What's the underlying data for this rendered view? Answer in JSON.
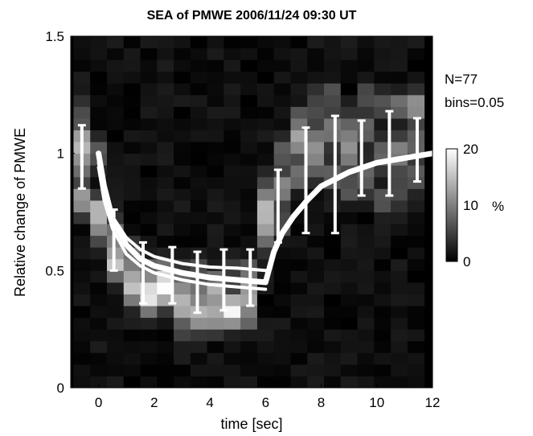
{
  "chart_data": {
    "type": "heatmap",
    "title": "SEA of PMWE 2006/11/24 09:30 UT",
    "xlabel": "time [sec]",
    "ylabel": "Relative change of PMWE",
    "xlim": [
      -1,
      12
    ],
    "ylim": [
      0,
      1.5
    ],
    "x_ticks": [
      "0",
      "2",
      "4",
      "6",
      "8",
      "10",
      "12"
    ],
    "y_ticks": [
      "0",
      "0.5",
      "1",
      "1.5"
    ],
    "annotations": [
      "N=77",
      "bins=0.05"
    ],
    "colorbar": {
      "min": 0,
      "max": 20,
      "ticks": [
        "0",
        "10",
        "20"
      ],
      "unit": "%",
      "colormap": "gray"
    },
    "bins": {
      "time_step": 0.6,
      "time_start": -0.9,
      "value_step": 0.05
    },
    "heatmap_columns": [
      {
        "t": -0.6,
        "peaks": [
          [
            1.05,
            14
          ],
          [
            0.8,
            12
          ],
          [
            0.95,
            8
          ],
          [
            1.2,
            4
          ]
        ]
      },
      {
        "t": 0.0,
        "peaks": [
          [
            0.75,
            14
          ],
          [
            0.65,
            6
          ],
          [
            1.0,
            6
          ]
        ]
      },
      {
        "t": 0.6,
        "peaks": [
          [
            0.55,
            10
          ],
          [
            0.65,
            8
          ],
          [
            0.5,
            6
          ]
        ]
      },
      {
        "t": 1.2,
        "peaks": [
          [
            0.45,
            10
          ],
          [
            0.55,
            8
          ],
          [
            0.4,
            6
          ]
        ]
      },
      {
        "t": 1.8,
        "peaks": [
          [
            0.4,
            14
          ],
          [
            0.5,
            8
          ],
          [
            0.35,
            6
          ]
        ]
      },
      {
        "t": 2.4,
        "peaks": [
          [
            0.4,
            12
          ],
          [
            0.45,
            8
          ],
          [
            0.5,
            6
          ]
        ]
      },
      {
        "t": 3.0,
        "peaks": [
          [
            0.35,
            12
          ],
          [
            0.45,
            8
          ],
          [
            0.25,
            4
          ]
        ]
      },
      {
        "t": 3.6,
        "peaks": [
          [
            0.3,
            12
          ],
          [
            0.4,
            8
          ],
          [
            0.5,
            4
          ]
        ]
      },
      {
        "t": 4.2,
        "peaks": [
          [
            0.3,
            12
          ],
          [
            0.4,
            8
          ],
          [
            0.45,
            6
          ]
        ]
      },
      {
        "t": 4.8,
        "peaks": [
          [
            0.35,
            12
          ],
          [
            0.3,
            8
          ],
          [
            0.5,
            4
          ]
        ]
      },
      {
        "t": 5.4,
        "peaks": [
          [
            0.4,
            10
          ],
          [
            0.3,
            8
          ],
          [
            0.5,
            6
          ]
        ]
      },
      {
        "t": 6.0,
        "peaks": [
          [
            0.75,
            14
          ],
          [
            0.65,
            8
          ],
          [
            0.85,
            6
          ]
        ]
      },
      {
        "t": 6.6,
        "peaks": [
          [
            0.85,
            10
          ],
          [
            1.0,
            6
          ],
          [
            0.7,
            6
          ]
        ]
      },
      {
        "t": 7.2,
        "peaks": [
          [
            1.05,
            12
          ],
          [
            0.9,
            8
          ],
          [
            1.15,
            6
          ]
        ]
      },
      {
        "t": 7.8,
        "peaks": [
          [
            1.05,
            10
          ],
          [
            0.95,
            8
          ],
          [
            1.2,
            6
          ]
        ]
      },
      {
        "t": 8.4,
        "peaks": [
          [
            1.1,
            10
          ],
          [
            0.9,
            8
          ],
          [
            1.25,
            6
          ]
        ]
      },
      {
        "t": 9.0,
        "peaks": [
          [
            1.0,
            10
          ],
          [
            1.1,
            8
          ],
          [
            0.85,
            6
          ]
        ]
      },
      {
        "t": 9.6,
        "peaks": [
          [
            1.1,
            8
          ],
          [
            0.9,
            8
          ],
          [
            1.25,
            6
          ]
        ]
      },
      {
        "t": 10.2,
        "peaks": [
          [
            1.0,
            8
          ],
          [
            1.2,
            6
          ],
          [
            0.8,
            6
          ]
        ]
      },
      {
        "t": 10.8,
        "peaks": [
          [
            1.0,
            10
          ],
          [
            1.2,
            8
          ],
          [
            0.85,
            6
          ]
        ]
      },
      {
        "t": 11.4,
        "peaks": [
          [
            1.2,
            12
          ],
          [
            1.05,
            8
          ],
          [
            0.9,
            6
          ]
        ]
      }
    ],
    "error_bars": [
      {
        "x": -0.6,
        "y": 0.98,
        "lo": 0.85,
        "hi": 1.12
      },
      {
        "x": 0.55,
        "y": 0.63,
        "lo": 0.5,
        "hi": 0.76
      },
      {
        "x": 1.6,
        "y": 0.49,
        "lo": 0.36,
        "hi": 0.62
      },
      {
        "x": 2.65,
        "y": 0.48,
        "lo": 0.36,
        "hi": 0.6
      },
      {
        "x": 3.55,
        "y": 0.45,
        "lo": 0.32,
        "hi": 0.58
      },
      {
        "x": 4.5,
        "y": 0.46,
        "lo": 0.33,
        "hi": 0.59
      },
      {
        "x": 5.45,
        "y": 0.47,
        "lo": 0.35,
        "hi": 0.59
      },
      {
        "x": 6.45,
        "y": 0.78,
        "lo": 0.62,
        "hi": 0.93
      },
      {
        "x": 7.45,
        "y": 0.88,
        "lo": 0.66,
        "hi": 1.11
      },
      {
        "x": 8.5,
        "y": 0.91,
        "lo": 0.66,
        "hi": 1.16
      },
      {
        "x": 9.45,
        "y": 0.98,
        "lo": 0.82,
        "hi": 1.14
      },
      {
        "x": 10.45,
        "y": 1.01,
        "lo": 0.82,
        "hi": 1.18
      },
      {
        "x": 11.45,
        "y": 1.02,
        "lo": 0.88,
        "hi": 1.15
      }
    ],
    "series": [
      {
        "x": [
          0,
          0.2,
          0.5,
          1,
          1.5,
          2,
          3,
          4,
          5,
          6,
          6.3,
          6.6,
          7,
          7.5,
          8,
          9,
          10,
          11,
          12
        ],
        "y": [
          1.0,
          0.86,
          0.72,
          0.61,
          0.55,
          0.52,
          0.49,
          0.47,
          0.46,
          0.45,
          0.58,
          0.66,
          0.73,
          0.8,
          0.86,
          0.92,
          0.96,
          0.98,
          1.0
        ]
      },
      {
        "x": [
          0,
          0.2,
          0.5,
          1,
          1.5,
          2,
          3,
          4,
          5,
          6
        ],
        "y": [
          0.96,
          0.84,
          0.73,
          0.64,
          0.59,
          0.56,
          0.53,
          0.515,
          0.51,
          0.5
        ]
      },
      {
        "x": [
          0,
          0.2,
          0.5,
          1,
          1.5,
          2,
          3,
          4,
          5,
          6
        ],
        "y": [
          0.94,
          0.8,
          0.68,
          0.57,
          0.52,
          0.49,
          0.46,
          0.44,
          0.43,
          0.42
        ]
      }
    ]
  }
}
